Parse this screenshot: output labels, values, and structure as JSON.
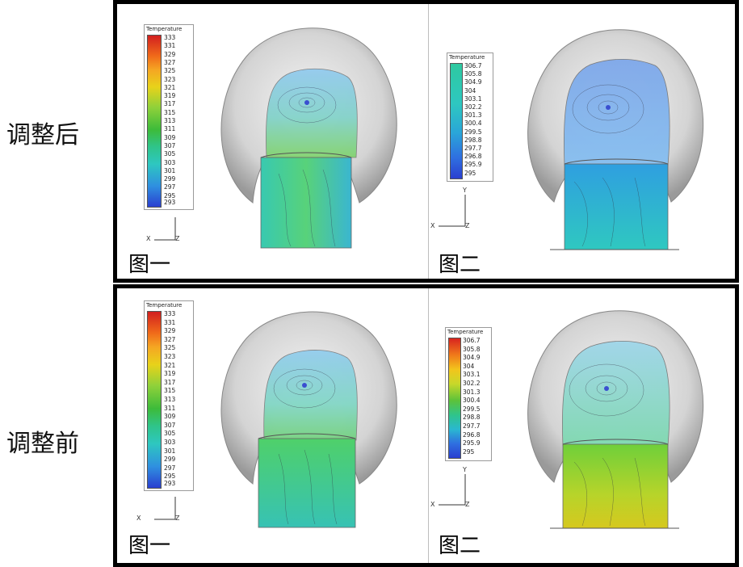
{
  "rows": [
    {
      "label": "调整后",
      "panels": [
        {
          "fig_label": "图一",
          "legend_title": "Temperature",
          "legend_values": [
            "333",
            "331",
            "329",
            "327",
            "325",
            "323",
            "321",
            "319",
            "317",
            "315",
            "313",
            "311",
            "309",
            "307",
            "305",
            "303",
            "301",
            "299",
            "297",
            "295",
            "293"
          ],
          "axes": {
            "x": "X",
            "y": "",
            "z": "Z"
          }
        },
        {
          "fig_label": "图二",
          "legend_title": "Temperature",
          "legend_values": [
            "306.7",
            "305.8",
            "304.9",
            "304",
            "303.1",
            "302.2",
            "301.3",
            "300.4",
            "299.5",
            "298.8",
            "297.7",
            "296.8",
            "295.9",
            "295"
          ],
          "axes": {
            "x": "X",
            "y": "Y",
            "z": "Z"
          }
        }
      ]
    },
    {
      "label": "调整前",
      "panels": [
        {
          "fig_label": "图一",
          "legend_title": "Temperature",
          "legend_values": [
            "333",
            "331",
            "329",
            "327",
            "325",
            "323",
            "321",
            "319",
            "317",
            "315",
            "313",
            "311",
            "309",
            "307",
            "305",
            "303",
            "301",
            "299",
            "297",
            "295",
            "293"
          ],
          "axes": {
            "x": "X",
            "y": "",
            "z": "Z"
          }
        },
        {
          "fig_label": "图二",
          "legend_title": "Temperature",
          "legend_values": [
            "306.7",
            "305.8",
            "304.9",
            "304",
            "303.1",
            "302.2",
            "301.3",
            "300.4",
            "299.5",
            "298.8",
            "297.7",
            "296.8",
            "295.9",
            "295"
          ],
          "axes": {
            "x": "X",
            "y": "Y",
            "z": "Z"
          }
        }
      ]
    }
  ],
  "colors": {
    "legend_full_range": [
      "#d21f1f",
      "#f06a1a",
      "#f5a623",
      "#e8d21a",
      "#8fd13a",
      "#3dbb3a",
      "#2fc48a",
      "#2ec7c0",
      "#2f8fe0",
      "#2a3fd0"
    ],
    "legend_narrow_range": [
      "#2ec9a0",
      "#2ec7c0",
      "#2aa6d8",
      "#2f6fe0",
      "#2a3fd0"
    ],
    "legend_narrow_range_before": [
      "#d8241f",
      "#f07a1a",
      "#f2c51c",
      "#c8d82a",
      "#5cc23a",
      "#2fc48a",
      "#2ab8d0",
      "#2f6fe0",
      "#2a3fd0"
    ],
    "shell": "#d9d9d9",
    "frame": "#000000"
  }
}
